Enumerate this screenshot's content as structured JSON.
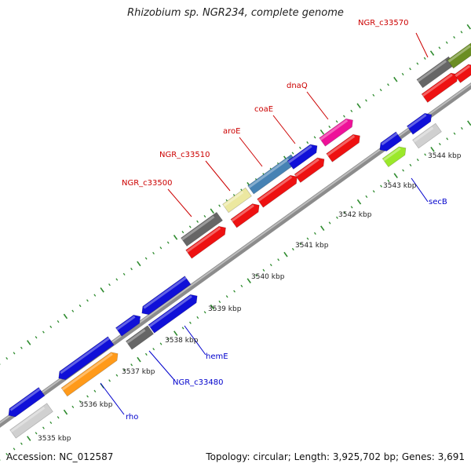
{
  "title": "Rhizobium sp. NGR234, complete genome",
  "footer": {
    "accession": "Accession: NC_012587",
    "summary": "Topology: circular; Length: 3,925,702 bp; Genes: 3,691"
  },
  "colors": {
    "label_red": "#cc0000",
    "label_blue": "#0000cc",
    "backbone": "#8c8c8c",
    "tick_dots": "#2e8b2e"
  },
  "tick_labels": [
    {
      "text": "3535 kbp"
    },
    {
      "text": "3536 kbp"
    },
    {
      "text": "3537 kbp"
    },
    {
      "text": "3538 kbp"
    },
    {
      "text": "3539 kbp"
    },
    {
      "text": "3540 kbp"
    },
    {
      "text": "3541 kbp"
    },
    {
      "text": "3542 kbp"
    },
    {
      "text": "3543 kbp"
    },
    {
      "text": "3544 kbp"
    }
  ],
  "gene_labels": [
    {
      "text": "NGR_c33570",
      "color": "red"
    },
    {
      "text": "dnaQ",
      "color": "red"
    },
    {
      "text": "coaE",
      "color": "red"
    },
    {
      "text": "aroE",
      "color": "red"
    },
    {
      "text": "NGR_c33510",
      "color": "red"
    },
    {
      "text": "NGR_c33500",
      "color": "red"
    },
    {
      "text": "secB",
      "color": "blue"
    },
    {
      "text": "hemE",
      "color": "blue"
    },
    {
      "text": "NGR_c33480",
      "color": "blue"
    },
    {
      "text": "rho",
      "color": "blue"
    }
  ],
  "gene_blocks": [
    {
      "name": "gene-block-grey",
      "color": "#d0d0d0"
    },
    {
      "name": "gene-block-blue",
      "color": "#1010d8"
    },
    {
      "name": "gene-block-orange",
      "color": "#ff9a1a"
    },
    {
      "name": "gene-block-darkgrey",
      "color": "#666666"
    },
    {
      "name": "gene-block-yellow",
      "color": "#ece8a0"
    },
    {
      "name": "gene-block-steelblue",
      "color": "#4682b4"
    },
    {
      "name": "gene-block-magenta",
      "color": "#ee1199"
    },
    {
      "name": "gene-block-lime",
      "color": "#9be82a"
    },
    {
      "name": "gene-block-olive",
      "color": "#6b8e23"
    },
    {
      "name": "gene-block-red",
      "color": "#ee1111"
    }
  ]
}
